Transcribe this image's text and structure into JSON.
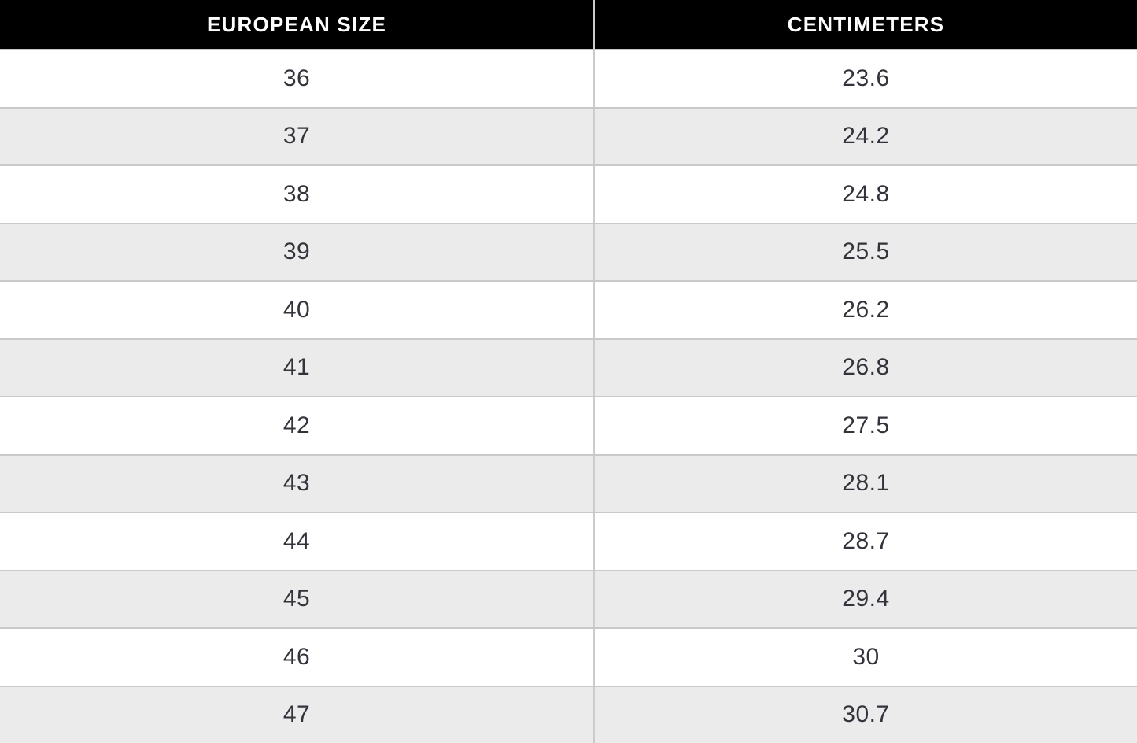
{
  "table": {
    "columns": [
      {
        "label": "EUROPEAN SIZE"
      },
      {
        "label": "CENTIMETERS"
      }
    ],
    "rows": [
      {
        "european_size": "36",
        "centimeters": "23.6"
      },
      {
        "european_size": "37",
        "centimeters": "24.2"
      },
      {
        "european_size": "38",
        "centimeters": "24.8"
      },
      {
        "european_size": "39",
        "centimeters": "25.5"
      },
      {
        "european_size": "40",
        "centimeters": "26.2"
      },
      {
        "european_size": "41",
        "centimeters": "26.8"
      },
      {
        "european_size": "42",
        "centimeters": "27.5"
      },
      {
        "european_size": "43",
        "centimeters": "28.1"
      },
      {
        "european_size": "44",
        "centimeters": "28.7"
      },
      {
        "european_size": "45",
        "centimeters": "29.4"
      },
      {
        "european_size": "46",
        "centimeters": "30"
      },
      {
        "european_size": "47",
        "centimeters": "30.7"
      }
    ]
  },
  "colors": {
    "header_background": "#000000",
    "header_text": "#ffffff",
    "row_background": "#ffffff",
    "row_alternate_background": "#ebebeb",
    "grid_line": "#c9c9c9",
    "column_divider": "#cccccc",
    "cell_text": "#33333b"
  },
  "chart_data": {
    "type": "table",
    "title": "",
    "columns": [
      "EUROPEAN SIZE",
      "CENTIMETERS"
    ],
    "rows": [
      [
        36,
        23.6
      ],
      [
        37,
        24.2
      ],
      [
        38,
        24.8
      ],
      [
        39,
        25.5
      ],
      [
        40,
        26.2
      ],
      [
        41,
        26.8
      ],
      [
        42,
        27.5
      ],
      [
        43,
        28.1
      ],
      [
        44,
        28.7
      ],
      [
        45,
        29.4
      ],
      [
        46,
        30
      ],
      [
        47,
        30.7
      ]
    ]
  }
}
